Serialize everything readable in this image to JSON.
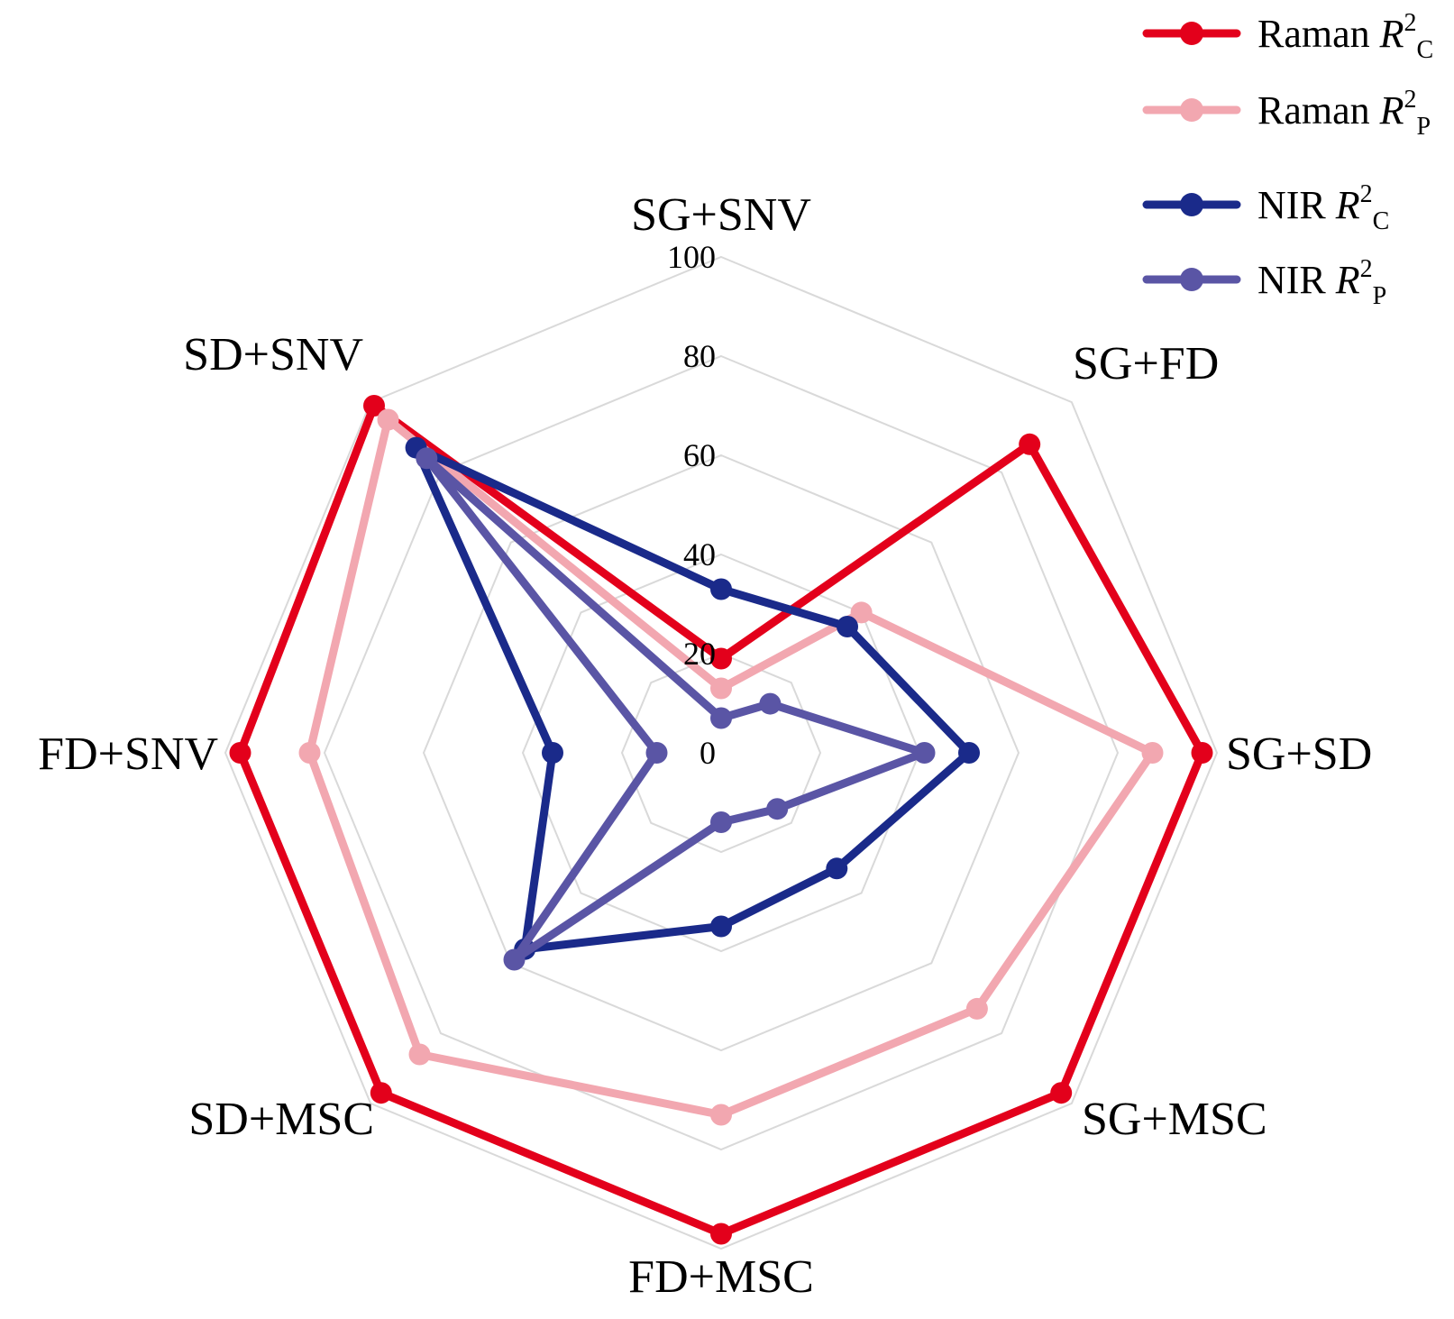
{
  "chart_data": {
    "type": "radar",
    "axes": [
      "SG+SNV",
      "SG+FD",
      "SG+SD",
      "SG+MSC",
      "FD+MSC",
      "SD+MSC",
      "FD+SNV",
      "SD+SNV"
    ],
    "rlim": [
      0,
      100
    ],
    "ticks": [
      "0",
      "20",
      "40",
      "60",
      "80",
      "100"
    ],
    "tick_values": [
      0,
      20,
      40,
      60,
      80,
      100
    ],
    "grid": true,
    "legend_position": "top-right",
    "series": [
      {
        "name": "Raman R2C",
        "prefix": "Raman ",
        "symbol": "R",
        "sup": "2",
        "sub": "C",
        "color": "#e3001b",
        "values": [
          19,
          88,
          97,
          97,
          97,
          97,
          97,
          99
        ]
      },
      {
        "name": "Raman R2P",
        "prefix": "Raman ",
        "symbol": "R",
        "sup": "2",
        "sub": "P",
        "color": "#f2a7b0",
        "values": [
          13,
          40,
          87,
          73,
          73,
          86,
          83,
          95
        ]
      },
      {
        "name": "NIR R2C",
        "prefix": "NIR ",
        "symbol": "R",
        "sup": "2",
        "sub": "C",
        "color": "#1a2a8a",
        "values": [
          33,
          36,
          50,
          33,
          35,
          56,
          34,
          87
        ]
      },
      {
        "name": "NIR R2P",
        "prefix": "NIR ",
        "symbol": "R",
        "sup": "2",
        "sub": "P",
        "color": "#5a55a5",
        "values": [
          7,
          14,
          41,
          16,
          14,
          59,
          13,
          84
        ]
      }
    ]
  }
}
